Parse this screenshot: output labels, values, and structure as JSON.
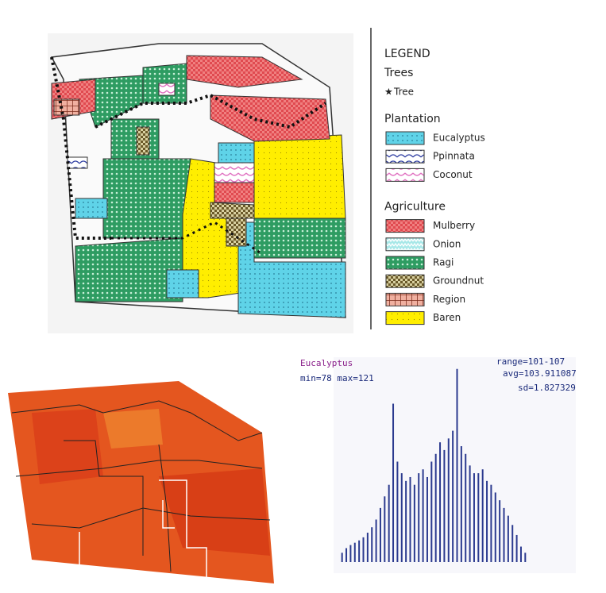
{
  "legend": {
    "title": "LEGEND",
    "groups": [
      {
        "name": "Trees",
        "items": [
          "Tree"
        ]
      },
      {
        "name": "Plantation",
        "items": [
          "Eucalyptus",
          "Ppinnata",
          "Coconut"
        ]
      },
      {
        "name": "Agriculture",
        "items": [
          "Mulberry",
          "Onion",
          "Ragi",
          "Groundnut",
          "Region",
          "Baren"
        ]
      }
    ]
  },
  "chart_data": {
    "type": "bar",
    "title": "Eucalyptus",
    "annotations": [
      "min=78 max=121",
      "range=101-107",
      "avg=103.911087",
      "sd=1.827329"
    ],
    "categories": [
      null,
      null,
      null,
      null,
      null,
      null,
      null,
      null,
      null,
      null,
      null,
      null,
      null,
      null,
      null,
      null,
      null,
      null,
      null,
      null,
      null,
      null,
      null,
      null,
      null,
      null,
      null,
      null,
      null,
      null,
      null,
      null,
      null,
      null,
      null,
      null,
      null,
      null,
      null,
      null,
      null,
      null,
      null,
      null
    ],
    "values": [
      12,
      18,
      22,
      25,
      28,
      32,
      38,
      45,
      55,
      70,
      85,
      100,
      205,
      130,
      115,
      105,
      110,
      100,
      115,
      120,
      110,
      130,
      140,
      155,
      145,
      160,
      170,
      250,
      150,
      140,
      125,
      115,
      115,
      120,
      105,
      100,
      90,
      80,
      70,
      60,
      48,
      35,
      20,
      12
    ],
    "color": "#2b3a8f",
    "ylim": [
      0,
      260
    ]
  }
}
